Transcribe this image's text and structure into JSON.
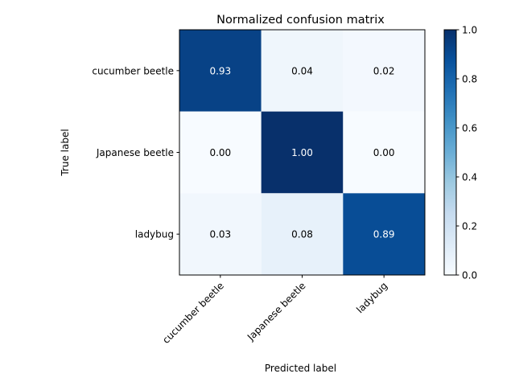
{
  "chart_data": {
    "type": "heatmap",
    "title": "Normalized confusion matrix",
    "xlabel": "Predicted label",
    "ylabel": "True label",
    "x_categories": [
      "cucumber beetle",
      "Japanese beetle",
      "ladybug"
    ],
    "y_categories": [
      "cucumber beetle",
      "Japanese beetle",
      "ladybug"
    ],
    "values": [
      [
        0.93,
        0.04,
        0.02
      ],
      [
        0.0,
        1.0,
        0.0
      ],
      [
        0.03,
        0.08,
        0.89
      ]
    ],
    "value_labels": [
      [
        "0.93",
        "0.04",
        "0.02"
      ],
      [
        "0.00",
        "1.00",
        "0.00"
      ],
      [
        "0.03",
        "0.08",
        "0.89"
      ]
    ],
    "colormap": "Blues",
    "colorbar": {
      "range": [
        0.0,
        1.0
      ],
      "ticks": [
        0.0,
        0.2,
        0.4,
        0.6,
        0.8,
        1.0
      ],
      "tick_labels": [
        "0.0",
        "0.2",
        "0.4",
        "0.6",
        "0.8",
        "1.0"
      ]
    },
    "grid": false,
    "x_tick_rotation": 45
  }
}
